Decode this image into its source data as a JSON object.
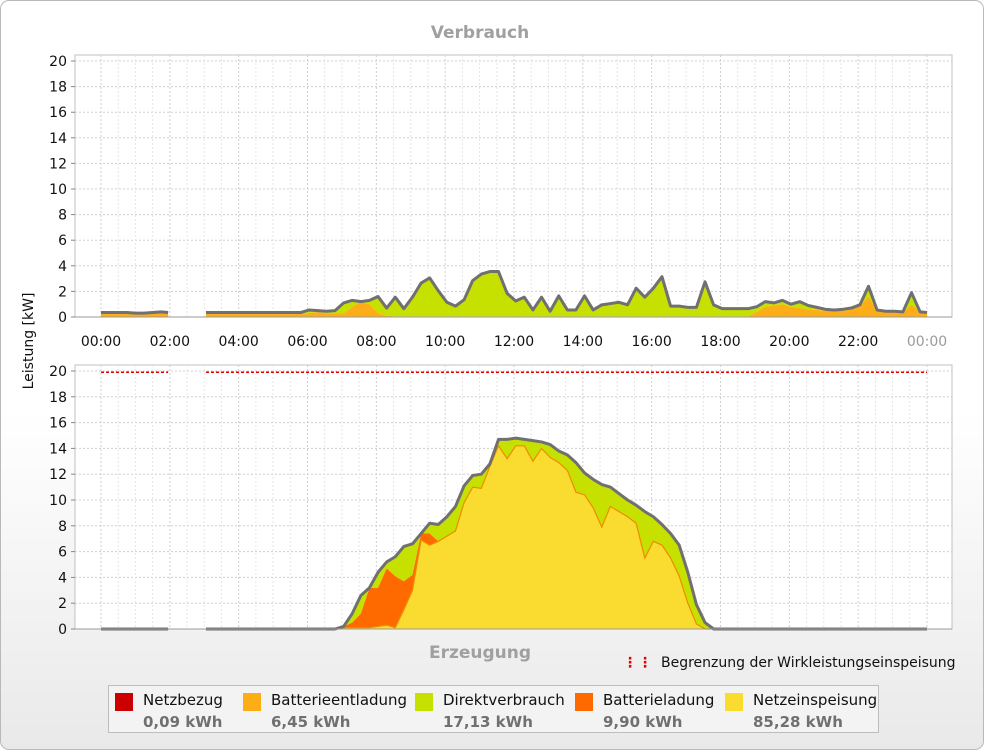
{
  "colors": {
    "netzbezug": "#cc0000",
    "batterieentladung": "#fdae17",
    "direktverbrauch": "#c6e100",
    "batterieladung": "#ff6a00",
    "netzeinspeisung": "#f9dc2f",
    "outline": "#707070",
    "limit": "#e00000",
    "grid": "#cfcfcf"
  },
  "y_axis_label": "Leistung [kW]",
  "limit_legend_label": "Begrenzung der Wirkleistungseinspeisung",
  "legend": [
    {
      "key": "netzbezug",
      "name": "Netzbezug",
      "value": "0,09 kWh"
    },
    {
      "key": "batterieentladung",
      "name": "Batterieentladung",
      "value": "6,45 kWh"
    },
    {
      "key": "direktverbrauch",
      "name": "Direktverbrauch",
      "value": "17,13 kWh"
    },
    {
      "key": "batterieladung",
      "name": "Batterieladung",
      "value": "9,90 kWh"
    },
    {
      "key": "netzeinspeisung",
      "name": "Netzeinspeisung",
      "value": "85,28 kWh"
    }
  ],
  "chart_data": [
    {
      "type": "area",
      "title": "Verbrauch",
      "ylabel": "Leistung [kW]",
      "ylim": [
        0,
        20
      ],
      "yticks": [
        0,
        2,
        4,
        6,
        8,
        10,
        12,
        14,
        16,
        18,
        20
      ],
      "xlim": [
        0,
        24
      ],
      "xticks": [
        "00:00",
        "02:00",
        "04:00",
        "06:00",
        "08:00",
        "10:00",
        "12:00",
        "14:00",
        "16:00",
        "18:00",
        "20:00",
        "22:00",
        "00:00"
      ],
      "grid": true,
      "stacked": true,
      "series_order": [
        "batterieentladung",
        "direktverbrauch"
      ],
      "segments": [
        {
          "x": [
            0.0,
            0.25,
            0.5,
            0.75,
            1.0,
            1.25,
            1.5,
            1.75,
            1.95
          ],
          "batterieentladung": [
            0.3,
            0.3,
            0.3,
            0.3,
            0.25,
            0.25,
            0.3,
            0.35,
            0.3
          ],
          "direktverbrauch": [
            0.05,
            0.05,
            0.05,
            0.05,
            0.05,
            0.05,
            0.05,
            0.05,
            0.05
          ]
        },
        {
          "x": [
            3.05,
            3.3,
            3.55,
            3.8,
            4.05,
            4.3,
            4.55,
            4.8,
            5.05,
            5.3,
            5.55,
            5.8,
            6.05,
            6.3,
            6.55,
            6.8,
            7.05,
            7.3,
            7.55,
            7.8,
            8.05,
            8.3,
            8.55,
            8.8,
            9.05,
            9.3,
            9.55,
            9.8,
            10.05,
            10.3,
            10.55,
            10.8,
            11.05,
            11.3,
            11.55,
            11.8,
            12.05,
            12.3,
            12.55,
            12.8,
            13.05,
            13.3,
            13.55,
            13.8,
            14.05,
            14.3,
            14.55,
            14.8,
            15.05,
            15.3,
            15.55,
            15.8,
            16.05,
            16.3,
            16.55,
            16.8,
            17.05,
            17.3,
            17.55,
            17.8,
            18.05,
            18.3,
            18.55,
            18.8,
            19.05,
            19.3,
            19.55,
            19.8,
            20.05,
            20.3,
            20.55,
            20.8,
            21.05,
            21.3,
            21.55,
            21.8,
            22.05,
            22.3,
            22.55,
            22.8,
            23.05,
            23.3,
            23.55,
            23.8,
            24.0
          ],
          "batterieentladung": [
            0.3,
            0.3,
            0.3,
            0.3,
            0.3,
            0.3,
            0.3,
            0.3,
            0.3,
            0.3,
            0.3,
            0.3,
            0.3,
            0.4,
            0.3,
            0.3,
            0.3,
            0.8,
            1.2,
            1.0,
            0.3,
            0.1,
            0.05,
            0.05,
            0.05,
            0.05,
            0.05,
            0.05,
            0.05,
            0.05,
            0.05,
            0.05,
            0.05,
            0.05,
            0.05,
            0.05,
            0.05,
            0.05,
            0.05,
            0.05,
            0.05,
            0.05,
            0.05,
            0.05,
            0.05,
            0.05,
            0.05,
            0.05,
            0.05,
            0.05,
            0.05,
            0.05,
            0.05,
            0.05,
            0.05,
            0.05,
            0.05,
            0.05,
            0.05,
            0.05,
            0.05,
            0.05,
            0.05,
            0.05,
            0.4,
            0.8,
            0.9,
            1.0,
            0.8,
            0.7,
            0.6,
            0.55,
            0.5,
            0.5,
            0.5,
            0.6,
            0.9,
            1.6,
            0.5,
            0.4,
            0.4,
            0.35,
            1.0,
            0.35,
            0.3
          ],
          "direktverbrauch": [
            0.05,
            0.05,
            0.05,
            0.05,
            0.05,
            0.05,
            0.05,
            0.05,
            0.05,
            0.05,
            0.05,
            0.05,
            0.25,
            0.1,
            0.15,
            0.2,
            0.8,
            0.5,
            0.0,
            0.3,
            1.3,
            0.6,
            1.5,
            0.6,
            1.5,
            2.6,
            3.0,
            2.0,
            1.1,
            0.8,
            1.3,
            2.8,
            3.3,
            3.5,
            3.5,
            1.8,
            1.2,
            1.5,
            0.5,
            1.5,
            0.4,
            1.6,
            0.5,
            0.5,
            1.6,
            0.5,
            0.9,
            1.0,
            1.1,
            0.9,
            2.2,
            1.5,
            2.2,
            3.1,
            0.8,
            0.8,
            0.7,
            0.7,
            2.7,
            0.9,
            0.6,
            0.6,
            0.6,
            0.6,
            0.4,
            0.4,
            0.2,
            0.3,
            0.2,
            0.5,
            0.3,
            0.2,
            0.1,
            0.05,
            0.1,
            0.1,
            0.05,
            0.8,
            0.05,
            0.05,
            0.05,
            0.05,
            0.9,
            0.05,
            0.05
          ]
        }
      ]
    },
    {
      "type": "area",
      "title": "Erzeugung",
      "ylabel": "Leistung [kW]",
      "ylim": [
        0,
        20
      ],
      "yticks": [
        0,
        2,
        4,
        6,
        8,
        10,
        12,
        14,
        16,
        18,
        20
      ],
      "xlim": [
        0,
        24
      ],
      "grid": true,
      "stacked": true,
      "series_order": [
        "netzeinspeisung",
        "batterieladung",
        "direktverbrauch"
      ],
      "limit_line": {
        "value": 19.9,
        "segments": [
          [
            0.0,
            1.95
          ],
          [
            3.05,
            24.0
          ]
        ]
      },
      "segments": [
        {
          "x": [
            0.0,
            1.95
          ],
          "netzeinspeisung": [
            0,
            0
          ],
          "batterieladung": [
            0,
            0
          ],
          "direktverbrauch": [
            0,
            0
          ]
        },
        {
          "x": [
            3.05,
            6.55,
            6.8,
            7.05,
            7.3,
            7.55,
            7.8,
            8.05,
            8.3,
            8.55,
            8.8,
            9.05,
            9.3,
            9.55,
            9.8,
            10.05,
            10.3,
            10.55,
            10.8,
            11.05,
            11.3,
            11.55,
            11.8,
            12.05,
            12.3,
            12.55,
            12.8,
            13.05,
            13.3,
            13.55,
            13.8,
            14.05,
            14.3,
            14.55,
            14.8,
            15.05,
            15.3,
            15.55,
            15.8,
            16.05,
            16.3,
            16.55,
            16.8,
            17.05,
            17.3,
            17.55,
            17.8,
            18.05,
            18.3,
            18.55,
            18.8,
            19.05,
            19.3,
            19.55,
            19.8,
            20.05,
            20.3,
            20.55,
            24.0
          ],
          "netzeinspeisung": [
            0,
            0,
            0,
            0.1,
            0.1,
            0.1,
            0.1,
            0.2,
            0.3,
            0.1,
            1.5,
            3.0,
            6.9,
            6.5,
            6.8,
            7.2,
            7.6,
            9.8,
            11.0,
            10.9,
            12.6,
            14.2,
            13.2,
            14.2,
            14.2,
            13.0,
            14.0,
            13.3,
            12.9,
            12.3,
            10.6,
            10.4,
            9.4,
            7.9,
            9.5,
            9.1,
            8.7,
            8.2,
            5.5,
            6.8,
            6.5,
            5.5,
            4.1,
            2.0,
            0.4,
            0.0,
            0.0,
            0.0,
            0.0,
            0.0,
            0.0,
            0.0,
            0.0,
            0.0,
            0.0,
            0.0,
            0.0,
            0.0,
            0.0
          ],
          "batterieladung": [
            0,
            0,
            0,
            0.1,
            0.4,
            1.1,
            3.1,
            3.0,
            4.4,
            4.0,
            2.2,
            1.2,
            0.5,
            0.9,
            0.0,
            0.0,
            0.0,
            0.0,
            0.0,
            0.0,
            0.0,
            0.0,
            0.0,
            0.0,
            0.0,
            0.0,
            0.0,
            0.0,
            0.0,
            0.0,
            0.0,
            0.0,
            0.0,
            0.0,
            0.0,
            0.0,
            0.0,
            0.0,
            0.0,
            0.0,
            0.0,
            0.0,
            0.0,
            0.0,
            0.0,
            0.0,
            0.0,
            0.0,
            0.0,
            0.0,
            0.0,
            0.0,
            0.0,
            0.0,
            0.0,
            0.0,
            0.0,
            0.0,
            0.0
          ],
          "direktverbrauch": [
            0,
            0,
            0,
            0.0,
            0.7,
            1.4,
            0.0,
            1.2,
            0.5,
            1.5,
            2.7,
            2.4,
            0.0,
            0.8,
            1.3,
            1.5,
            1.9,
            1.3,
            0.9,
            1.1,
            0.2,
            0.5,
            1.5,
            0.6,
            0.5,
            1.6,
            0.5,
            1.0,
            0.9,
            1.2,
            2.3,
            1.7,
            2.2,
            3.3,
            1.5,
            1.4,
            1.3,
            1.4,
            3.6,
            1.9,
            1.6,
            1.9,
            2.4,
            2.4,
            1.5,
            0.5,
            0.0,
            0.0,
            0.0,
            0.0,
            0.0,
            0.0,
            0.0,
            0.0,
            0.0,
            0.0,
            0.0,
            0.0,
            0.0
          ]
        }
      ]
    }
  ]
}
